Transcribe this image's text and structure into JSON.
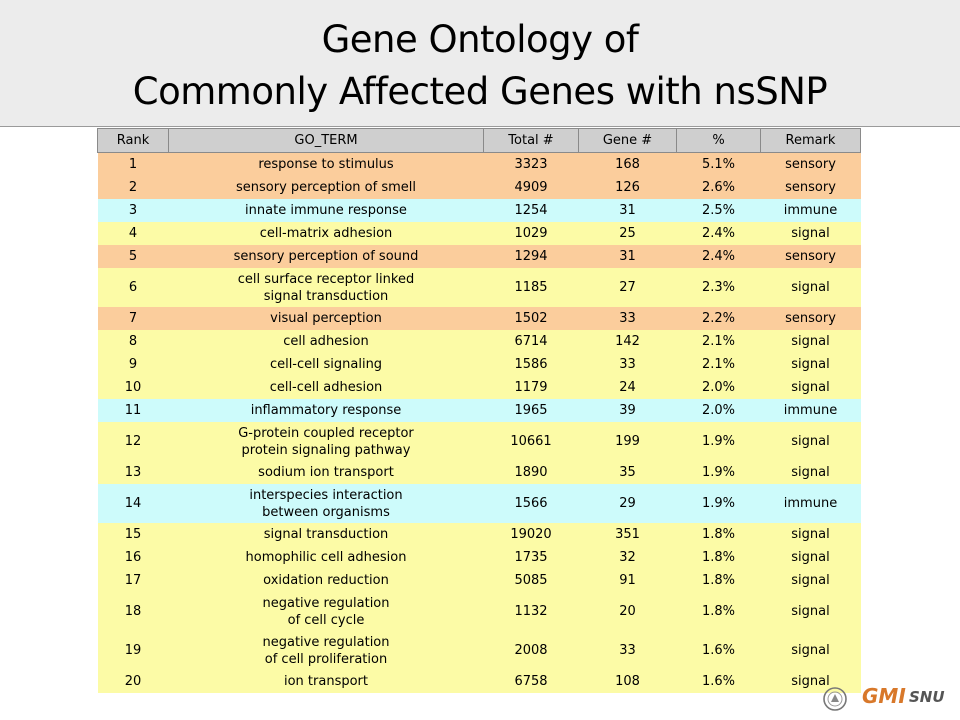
{
  "title": {
    "line1": "Gene Ontology of",
    "line2": "Commonly Affected Genes with nsSNP"
  },
  "table": {
    "headers": [
      "Rank",
      "GO_TERM",
      "Total #",
      "Gene #",
      "%",
      "Remark"
    ],
    "rows": [
      {
        "rank": "1",
        "term": [
          "response to stimulus"
        ],
        "total": "3323",
        "gene": "168",
        "pct": "5.1%",
        "remark": "sensory"
      },
      {
        "rank": "2",
        "term": [
          "sensory perception  of smell"
        ],
        "total": "4909",
        "gene": "126",
        "pct": "2.6%",
        "remark": "sensory"
      },
      {
        "rank": "3",
        "term": [
          "innate immune  response"
        ],
        "total": "1254",
        "gene": "31",
        "pct": "2.5%",
        "remark": "immune"
      },
      {
        "rank": "4",
        "term": [
          "cell-matrix adhesion"
        ],
        "total": "1029",
        "gene": "25",
        "pct": "2.4%",
        "remark": "signal"
      },
      {
        "rank": "5",
        "term": [
          "sensory perception  of sound"
        ],
        "total": "1294",
        "gene": "31",
        "pct": "2.4%",
        "remark": "sensory"
      },
      {
        "rank": "6",
        "term": [
          "cell surface  receptor  linked",
          "signal transduction"
        ],
        "total": "1185",
        "gene": "27",
        "pct": "2.3%",
        "remark": "signal"
      },
      {
        "rank": "7",
        "term": [
          "visual perception"
        ],
        "total": "1502",
        "gene": "33",
        "pct": "2.2%",
        "remark": "sensory"
      },
      {
        "rank": "8",
        "term": [
          "cell adhesion"
        ],
        "total": "6714",
        "gene": "142",
        "pct": "2.1%",
        "remark": "signal"
      },
      {
        "rank": "9",
        "term": [
          "cell-cell signaling"
        ],
        "total": "1586",
        "gene": "33",
        "pct": "2.1%",
        "remark": "signal"
      },
      {
        "rank": "10",
        "term": [
          "cell-cell adhesion"
        ],
        "total": "1179",
        "gene": "24",
        "pct": "2.0%",
        "remark": "signal"
      },
      {
        "rank": "11",
        "term": [
          "inflammatory  response"
        ],
        "total": "1965",
        "gene": "39",
        "pct": "2.0%",
        "remark": "immune"
      },
      {
        "rank": "12",
        "term": [
          "G-protein  coupled  receptor",
          "protein  signaling  pathway"
        ],
        "total": "10661",
        "gene": "199",
        "pct": "1.9%",
        "remark": "signal"
      },
      {
        "rank": "13",
        "term": [
          "sodium  ion transport"
        ],
        "total": "1890",
        "gene": "35",
        "pct": "1.9%",
        "remark": "signal"
      },
      {
        "rank": "14",
        "term": [
          "interspecies  interaction",
          "between  organisms"
        ],
        "total": "1566",
        "gene": "29",
        "pct": "1.9%",
        "remark": "immune"
      },
      {
        "rank": "15",
        "term": [
          "signal  transduction"
        ],
        "total": "19020",
        "gene": "351",
        "pct": "1.8%",
        "remark": "signal"
      },
      {
        "rank": "16",
        "term": [
          "homophilic  cell adhesion"
        ],
        "total": "1735",
        "gene": "32",
        "pct": "1.8%",
        "remark": "signal"
      },
      {
        "rank": "17",
        "term": [
          "oxidation  reduction"
        ],
        "total": "5085",
        "gene": "91",
        "pct": "1.8%",
        "remark": "signal"
      },
      {
        "rank": "18",
        "term": [
          "negative  regulation",
          "of cell cycle"
        ],
        "total": "1132",
        "gene": "20",
        "pct": "1.8%",
        "remark": "signal"
      },
      {
        "rank": "19",
        "term": [
          "negative  regulation",
          "of cell proliferation"
        ],
        "total": "2008",
        "gene": "33",
        "pct": "1.6%",
        "remark": "signal"
      },
      {
        "rank": "20",
        "term": [
          "ion transport"
        ],
        "total": "6758",
        "gene": "108",
        "pct": "1.6%",
        "remark": "signal"
      }
    ]
  },
  "colors": {
    "sensory": "#fbcd9c",
    "immune": "#cdfbfb",
    "signal": "#fcfba6",
    "header": "#cfcfcf",
    "title_band": "#ececec",
    "logo_accent": "#d8782a"
  },
  "logo": {
    "brand": "GMI",
    "suffix": "SNU",
    "emblem_icon": "university-emblem-icon"
  }
}
